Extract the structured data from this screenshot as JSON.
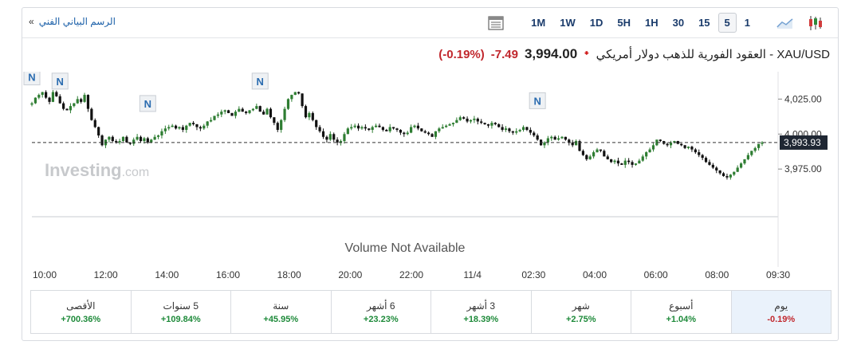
{
  "toolbar": {
    "technical_link": "الرسم البياني الفني",
    "link_arrow": "»",
    "timeframes": [
      "1M",
      "1W",
      "1D",
      "5H",
      "1H",
      "30",
      "15",
      "5",
      "1"
    ],
    "active_timeframe": "5",
    "icons": [
      "line-chart-icon",
      "candlestick-icon",
      "table-view-icon"
    ]
  },
  "header": {
    "instrument": "XAU/USD - العقود الفورية للذهب دولار أمريكي",
    "price": "3,994.00",
    "change": "-7.49",
    "change_pct": "(-0.19%)"
  },
  "chart_data": {
    "type": "candlestick",
    "y_ticks": [
      "4,025.00",
      "4,000.00",
      "3,975.00"
    ],
    "y_tick_values": [
      4025,
      4000,
      3975
    ],
    "current_price_label": "3,993.93",
    "current_price": 3993.93,
    "ylim": [
      3962,
      4040
    ],
    "x_ticks": [
      "10:00",
      "12:00",
      "14:00",
      "16:00",
      "18:00",
      "20:00",
      "22:00",
      "11/4",
      "02:30",
      "04:00",
      "06:00",
      "08:00",
      "09:30"
    ],
    "news_marker_label": "N",
    "news_markers": [
      {
        "x_index": 0,
        "level": 4034
      },
      {
        "x_index": 8,
        "level": 4031
      },
      {
        "x_index": 33,
        "level": 4015
      },
      {
        "x_index": 65,
        "level": 4031
      },
      {
        "x_index": 144,
        "level": 4017
      }
    ],
    "watermark": "Investing",
    "watermark_suffix": ".com",
    "volume_text": "Volume Not Available",
    "closes": [
      4022,
      4026,
      4028,
      4030,
      4026,
      4023,
      4030,
      4027,
      4022,
      4018,
      4017,
      4020,
      4022,
      4025,
      4023,
      4028,
      4018,
      4010,
      4005,
      3999,
      3992,
      3996,
      3998,
      3995,
      3994,
      3995,
      3998,
      3994,
      3993,
      3996,
      3998,
      3995,
      3997,
      3994,
      3996,
      3998,
      3999,
      4002,
      4004,
      4005,
      4006,
      4004,
      4005,
      4003,
      4006,
      4008,
      4007,
      4005,
      4004,
      4006,
      4009,
      4010,
      4013,
      4014,
      4016,
      4017,
      4015,
      4013,
      4016,
      4018,
      4016,
      4015,
      4017,
      4018,
      4020,
      4016,
      4014,
      4018,
      4012,
      4008,
      4003,
      4010,
      4018,
      4025,
      4028,
      4030,
      4029,
      4020,
      4012,
      4015,
      4010,
      4005,
      4002,
      3998,
      3996,
      4000,
      3996,
      3994,
      3995,
      4000,
      4004,
      4005,
      4006,
      4004,
      4005,
      4004,
      4003,
      4005,
      4006,
      4005,
      4003,
      4002,
      4005,
      4004,
      4003,
      4001,
      4000,
      4001,
      4005,
      4006,
      4004,
      4002,
      4001,
      4000,
      3998,
      4002,
      4004,
      4005,
      4006,
      4007,
      4008,
      4010,
      4012,
      4011,
      4009,
      4010,
      4011,
      4009,
      4008,
      4007,
      4006,
      4008,
      4007,
      4005,
      4003,
      4004,
      4002,
      4001,
      4002,
      4003,
      4005,
      4003,
      4001,
      3999,
      3996,
      3992,
      3994,
      3997,
      3998,
      3996,
      3997,
      3998,
      3996,
      3994,
      3992,
      3995,
      3988,
      3985,
      3982,
      3984,
      3987,
      3989,
      3988,
      3984,
      3982,
      3980,
      3981,
      3979,
      3978,
      3981,
      3980,
      3978,
      3979,
      3981,
      3984,
      3987,
      3989,
      3992,
      3996,
      3995,
      3993,
      3992,
      3994,
      3995,
      3993,
      3992,
      3990,
      3991,
      3989,
      3987,
      3985,
      3983,
      3980,
      3978,
      3976,
      3974,
      3972,
      3970,
      3969,
      3971,
      3973,
      3976,
      3979,
      3982,
      3985,
      3988,
      3990,
      3993,
      3994
    ]
  },
  "performance": [
    {
      "label": "يوم",
      "value": "-0.19%"
    },
    {
      "label": "أسبوع",
      "value": "+1.04%"
    },
    {
      "label": "شهر",
      "value": "+2.75%"
    },
    {
      "label": "3 أشهر",
      "value": "+18.39%"
    },
    {
      "label": "6 أشهر",
      "value": "+23.23%"
    },
    {
      "label": "سنة",
      "value": "+45.95%"
    },
    {
      "label": "5 سنوات",
      "value": "+109.84%"
    },
    {
      "label": "الأقصى",
      "value": "+700.36%"
    }
  ],
  "colors": {
    "up": "#2e7d32",
    "down": "#111111",
    "price_box": "#1f2733",
    "news_marker": "#2b6cb0"
  }
}
